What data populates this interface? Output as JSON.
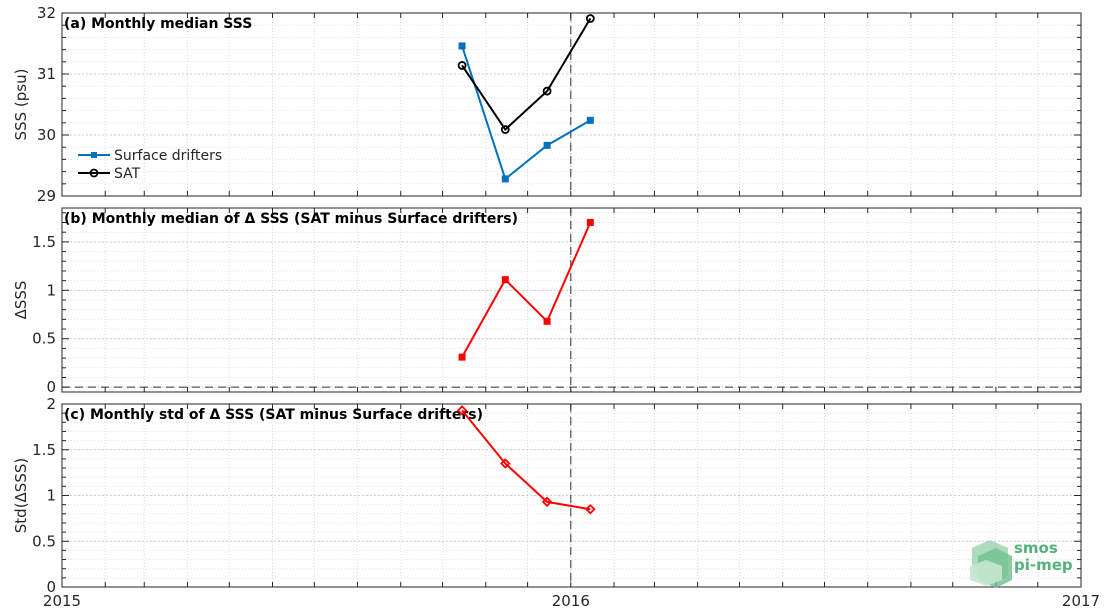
{
  "chart_data": {
    "type": "line",
    "x_axis": {
      "range": [
        "2015-01-01",
        "2017-01-01"
      ],
      "tick_labels": [
        "2015",
        "2016",
        "2017"
      ],
      "minor_ticks": "monthly",
      "vertical_marker": "2016-01-01",
      "shared": true
    },
    "panels": [
      {
        "title": "(a) Monthly median SSS",
        "ylabel": "SSS (psu)",
        "ylim": [
          29,
          32
        ],
        "yticks": [
          "29",
          "30",
          "31",
          "32"
        ],
        "grid": true,
        "legend_placement": "lower-left",
        "series": [
          {
            "name": "Surface drifters",
            "color": "#0072bd",
            "marker": "square",
            "x": [
              "2015-10-15",
              "2015-11-15",
              "2015-12-15",
              "2016-01-15"
            ],
            "values": [
              31.46,
              29.28,
              29.83,
              30.24
            ]
          },
          {
            "name": "SAT",
            "color": "#000000",
            "marker": "circle",
            "x": [
              "2015-10-15",
              "2015-11-15",
              "2015-12-15",
              "2016-01-15"
            ],
            "values": [
              31.14,
              30.09,
              30.72,
              31.91
            ]
          }
        ]
      },
      {
        "title": "(b) Monthly median of Δ SSS (SAT minus Surface drifters)",
        "ylabel": "ΔSSS",
        "ylim": [
          -0.05,
          1.85
        ],
        "yticks": [
          "0",
          "0.5",
          "1",
          "1.5"
        ],
        "grid": true,
        "zero_line": true,
        "series": [
          {
            "color": "#ff0000",
            "marker": "square",
            "x": [
              "2015-10-15",
              "2015-11-15",
              "2015-12-15",
              "2016-01-15"
            ],
            "values": [
              0.31,
              1.11,
              0.68,
              1.7
            ]
          }
        ]
      },
      {
        "title": "(c) Monthly std of Δ SSS (SAT minus Surface drifters)",
        "ylabel": "Std(ΔSSS)",
        "ylim": [
          0,
          2
        ],
        "yticks": [
          "0",
          "0.5",
          "1",
          "1.5",
          "2"
        ],
        "grid": true,
        "series": [
          {
            "color": "#ff0000",
            "marker": "diamond",
            "x": [
              "2015-10-15",
              "2015-11-15",
              "2015-12-15",
              "2016-01-15"
            ],
            "values": [
              1.93,
              1.35,
              0.93,
              0.85
            ]
          }
        ]
      }
    ],
    "logo": {
      "line1": "smos",
      "line2": "pi-mep",
      "color": "#55b27d"
    }
  }
}
